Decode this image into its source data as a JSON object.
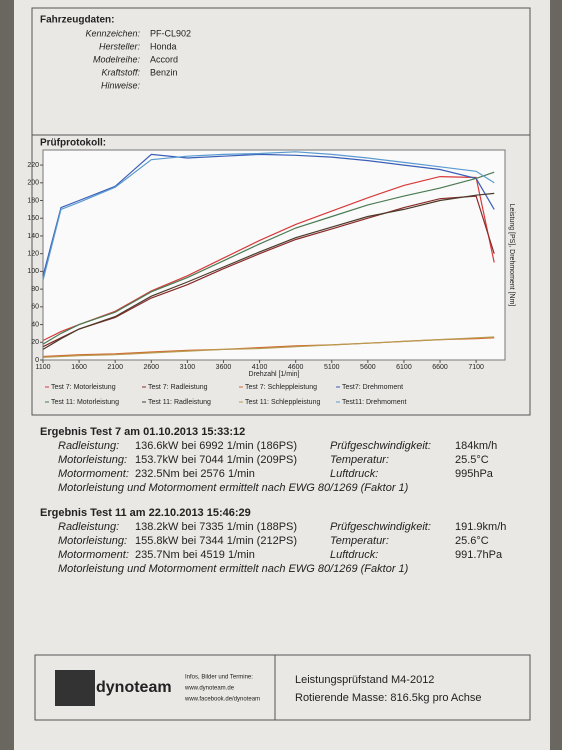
{
  "vehicle": {
    "title": "Fahrzeugdaten:",
    "fields": [
      {
        "label": "Kennzeichen:",
        "value": "PF-CL902"
      },
      {
        "label": "Hersteller:",
        "value": "Honda"
      },
      {
        "label": "Modelreihe:",
        "value": "Accord"
      },
      {
        "label": "Kraftstoff:",
        "value": "Benzin"
      },
      {
        "label": "Hinweise:",
        "value": ""
      }
    ]
  },
  "chart_data": {
    "type": "line",
    "title": "Prüfprotokoll:",
    "x_label": "Drehzahl [1/min]",
    "y_label": "Leistung [PS], Drehmoment [Nm]",
    "x": [
      1100,
      1350,
      1600,
      2100,
      2600,
      3100,
      3600,
      4100,
      4600,
      5100,
      5600,
      6100,
      6600,
      7100,
      7350
    ],
    "xlim": [
      1100,
      7500
    ],
    "xticks": [
      1100,
      1600,
      2100,
      2600,
      3100,
      3600,
      4100,
      4600,
      5100,
      5600,
      6100,
      6600,
      7100
    ],
    "ylim": [
      0,
      237
    ],
    "yticks": [
      0,
      20,
      40,
      60,
      80,
      100,
      120,
      140,
      160,
      180,
      200,
      220
    ],
    "series": [
      {
        "name": "Test 7: Motorleistung",
        "color": "#d83a3a",
        "values": [
          22,
          32,
          40,
          55,
          78,
          95,
          115,
          135,
          153,
          168,
          183,
          197,
          207,
          206,
          110
        ]
      },
      {
        "name": "Test 7: Radleistung",
        "color": "#8a2a2a",
        "values": [
          15,
          25,
          35,
          48,
          70,
          85,
          103,
          120,
          136,
          148,
          160,
          172,
          182,
          185,
          120
        ]
      },
      {
        "name": "Test 7: Schleppleistung",
        "color": "#d06a30",
        "values": [
          4,
          5,
          6,
          7,
          9,
          11,
          12,
          14,
          16,
          17,
          19,
          21,
          23,
          24,
          25
        ]
      },
      {
        "name": "Test7: Drehmoment",
        "color": "#3a5fb8",
        "values": [
          95,
          172,
          180,
          196,
          232,
          228,
          230,
          232,
          231,
          229,
          225,
          220,
          215,
          205,
          170
        ]
      },
      {
        "name": "Test 11: Motorleistung",
        "color": "#4a7a52",
        "values": [
          18,
          30,
          40,
          54,
          77,
          93,
          112,
          131,
          149,
          162,
          175,
          185,
          194,
          205,
          212
        ]
      },
      {
        "name": "Test 11: Radleistung",
        "color": "#4a3a2a",
        "values": [
          12,
          24,
          35,
          49,
          72,
          88,
          105,
          122,
          138,
          150,
          162,
          170,
          180,
          186,
          188
        ]
      },
      {
        "name": "Test 11: Schleppleistung",
        "color": "#b89a50",
        "values": [
          3,
          4,
          5,
          6,
          8,
          10,
          12,
          13,
          15,
          17,
          19,
          21,
          23,
          25,
          26
        ]
      },
      {
        "name": "Test11: Drehmoment",
        "color": "#5a9ad0",
        "values": [
          90,
          170,
          178,
          195,
          226,
          230,
          232,
          233,
          235,
          232,
          228,
          223,
          218,
          213,
          200
        ]
      }
    ]
  },
  "results": [
    {
      "title": "Ergebnis Test 7 am 01.10.2013 15:33:12",
      "rows": [
        [
          "Radleistung:",
          "136.6kW bei 6992 1/min (186PS)",
          "Prüfgeschwindigkeit:",
          "184km/h"
        ],
        [
          "Motorleistung:",
          "153.7kW bei 7044 1/min (209PS)",
          "Temperatur:",
          "25.5°C"
        ],
        [
          "Motormoment:",
          "232.5Nm bei 2576 1/min",
          "Luftdruck:",
          "995hPa"
        ]
      ],
      "note": "Motorleistung und Motormoment ermittelt nach EWG 80/1269 (Faktor 1)"
    },
    {
      "title": "Ergebnis Test 11 am 22.10.2013 15:46:29",
      "rows": [
        [
          "Radleistung:",
          "138.2kW bei 7335 1/min (188PS)",
          "Prüfgeschwindigkeit:",
          "191.9km/h"
        ],
        [
          "Motorleistung:",
          "155.8kW bei 7344 1/min (212PS)",
          "Temperatur:",
          "25.6°C"
        ],
        [
          "Motormoment:",
          "235.7Nm bei 4519 1/min",
          "Luftdruck:",
          "991.7hPa"
        ]
      ],
      "note": "Motorleistung und Motormoment ermittelt nach EWG 80/1269 (Faktor 1)"
    }
  ],
  "footer": {
    "logo": "dynoteam",
    "info": [
      "Infos, Bilder und Termine:",
      "www.dynoteam.de",
      "www.facebook.de/dynoteam"
    ],
    "bench": "Leistungsprüfstand M4-2012",
    "mass": "Rotierende Masse: 816.5kg pro Achse"
  }
}
